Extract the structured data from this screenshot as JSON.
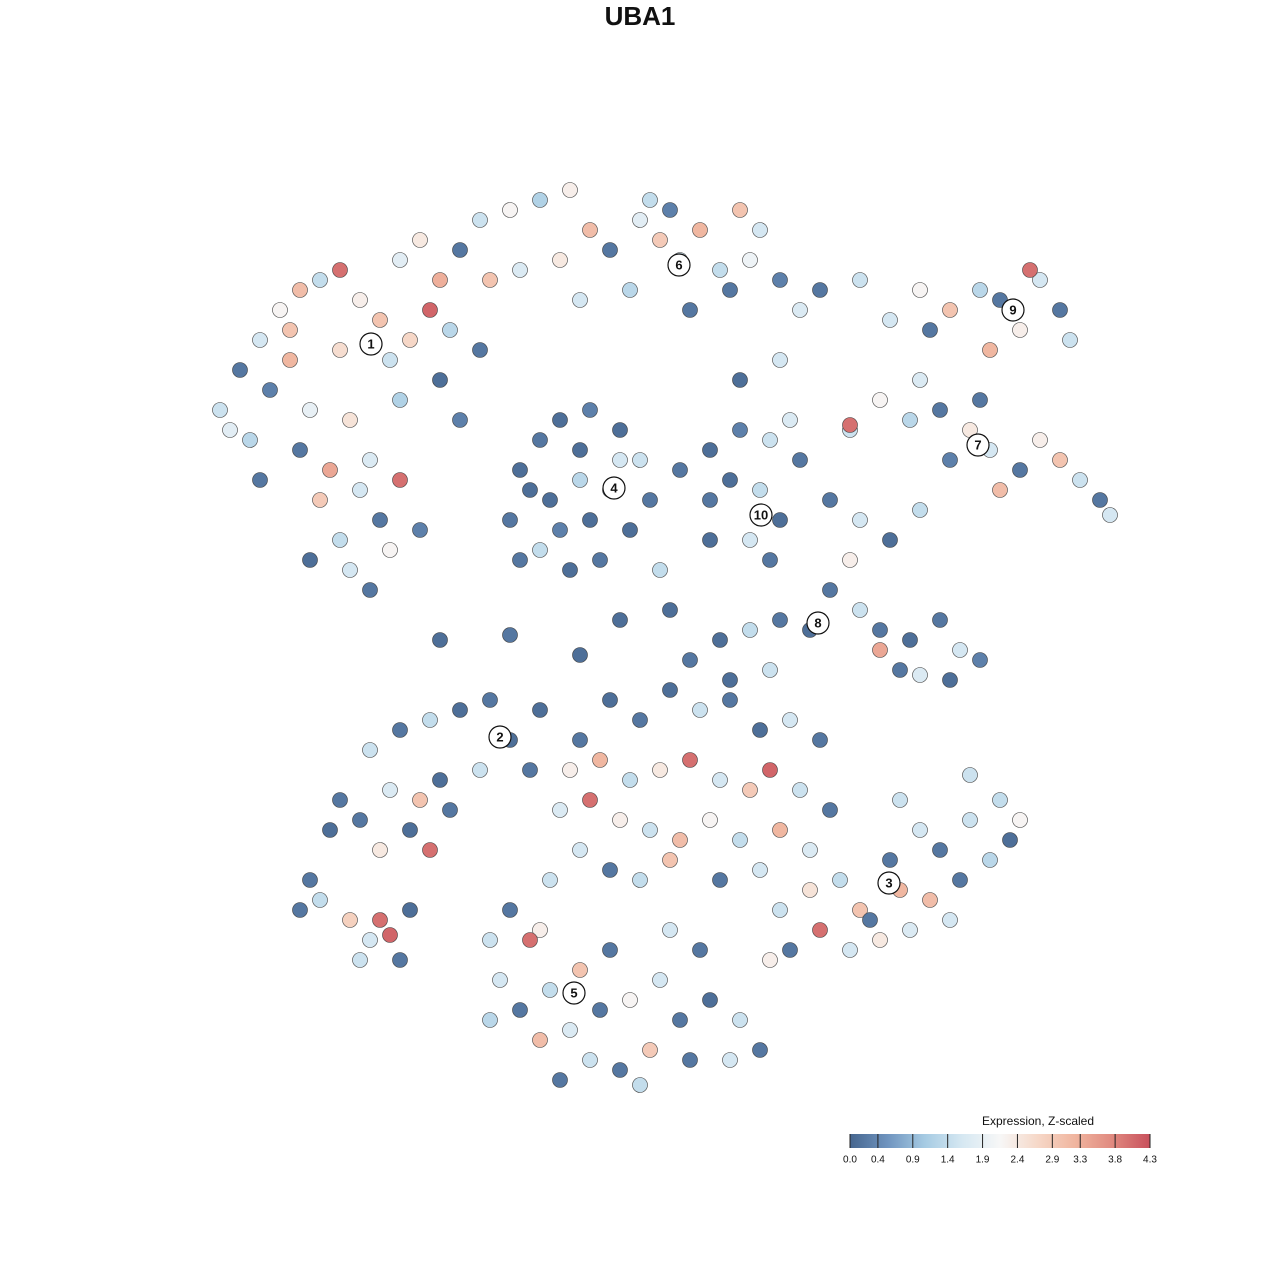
{
  "chart_data": {
    "type": "scatter",
    "title": "UBA1",
    "colorbar_title": "Expression, Z-scaled",
    "clim": [
      0,
      4.3
    ],
    "colorscale": [
      "#46668f",
      "#6f94bf",
      "#a6cbe3",
      "#d6e8f2",
      "#f7f7f7",
      "#f6d8c8",
      "#f0b59f",
      "#e0897f",
      "#c8505c"
    ],
    "cticks": [
      {
        "value": 0,
        "label": "0.0"
      },
      0.4,
      0.9,
      1.4,
      1.9,
      2.4,
      2.9,
      3.3,
      3.8,
      4.3
    ],
    "points": [
      [
        -42,
        23,
        1.5
      ],
      [
        -40,
        27,
        0.2
      ],
      [
        -38,
        30,
        1.6
      ],
      [
        -36,
        33,
        2.2
      ],
      [
        -34,
        35,
        3.1
      ],
      [
        -32,
        36,
        1.4
      ],
      [
        -30,
        37,
        4.0
      ],
      [
        -28,
        34,
        2.3
      ],
      [
        -26,
        32,
        3.0
      ],
      [
        -24,
        38,
        1.8
      ],
      [
        -22,
        40,
        2.4
      ],
      [
        -20,
        36,
        3.3
      ],
      [
        -18,
        39,
        0.2
      ],
      [
        -21,
        33,
        4.1
      ],
      [
        -25,
        28,
        1.5
      ],
      [
        -30,
        29,
        2.6
      ],
      [
        -35,
        28,
        3.2
      ],
      [
        -37,
        25,
        0.3
      ],
      [
        -33,
        23,
        1.9
      ],
      [
        -29,
        22,
        2.5
      ],
      [
        -24,
        24,
        1.2
      ],
      [
        -20,
        26,
        0.1
      ],
      [
        -18,
        22,
        0.3
      ],
      [
        -27,
        18,
        1.7
      ],
      [
        -31,
        17,
        3.4
      ],
      [
        -34,
        19,
        0.2
      ],
      [
        -39,
        20,
        1.3
      ],
      [
        -32,
        14,
        2.9
      ],
      [
        -28,
        15,
        1.6
      ],
      [
        -24,
        16,
        4.0
      ],
      [
        -26,
        12,
        0.2
      ],
      [
        -30,
        10,
        1.4
      ],
      [
        -33,
        8,
        0.1
      ],
      [
        -29,
        7,
        1.6
      ],
      [
        -25,
        9,
        2.2
      ],
      [
        -22,
        11,
        0.3
      ],
      [
        -27,
        5,
        0.2
      ],
      [
        -35,
        31,
        3.0
      ],
      [
        -38,
        16,
        0.2
      ],
      [
        -41,
        21,
        1.8
      ],
      [
        -23,
        30,
        2.7
      ],
      [
        -19,
        31,
        1.3
      ],
      [
        -16,
        29,
        0.2
      ],
      [
        -16,
        42,
        1.5
      ],
      [
        -13,
        43,
        2.2
      ],
      [
        -10,
        44,
        1.2
      ],
      [
        -7,
        45,
        2.3
      ],
      [
        -5,
        41,
        3.1
      ],
      [
        -8,
        38,
        2.4
      ],
      [
        -12,
        37,
        1.7
      ],
      [
        -15,
        36,
        3.0
      ],
      [
        -3,
        39,
        0.2
      ],
      [
        0,
        42,
        1.8
      ],
      [
        2,
        40,
        2.9
      ],
      [
        4,
        38,
        1.5
      ],
      [
        3,
        43,
        0.3
      ],
      [
        6,
        41,
        3.2
      ],
      [
        8,
        37,
        1.4
      ],
      [
        9,
        35,
        0.2
      ],
      [
        11,
        38,
        2.0
      ],
      [
        12,
        41,
        1.6
      ],
      [
        14,
        36,
        0.3
      ],
      [
        16,
        33,
        1.7
      ],
      [
        18,
        35,
        0.2
      ],
      [
        -1,
        35,
        1.3
      ],
      [
        5,
        33,
        0.2
      ],
      [
        -6,
        34,
        1.6
      ],
      [
        1,
        44,
        1.4
      ],
      [
        10,
        43,
        3.0
      ],
      [
        -12,
        17,
        0.1
      ],
      [
        -10,
        20,
        0.2
      ],
      [
        -8,
        22,
        0.1
      ],
      [
        -5,
        23,
        0.3
      ],
      [
        -2,
        21,
        0.1
      ],
      [
        0,
        18,
        1.5
      ],
      [
        1,
        14,
        0.2
      ],
      [
        -1,
        11,
        0.1
      ],
      [
        -4,
        8,
        0.2
      ],
      [
        -7,
        7,
        0.1
      ],
      [
        -10,
        9,
        1.4
      ],
      [
        -13,
        12,
        0.2
      ],
      [
        -9,
        14,
        0.1
      ],
      [
        -6,
        16,
        1.3
      ],
      [
        -3,
        15,
        0.2
      ],
      [
        -5,
        12,
        0.1
      ],
      [
        -8,
        11,
        0.3
      ],
      [
        -11,
        15,
        0.1
      ],
      [
        -2,
        18,
        1.6
      ],
      [
        -6,
        19,
        0.1
      ],
      [
        -12,
        8,
        0.2
      ],
      [
        4,
        17,
        0.2
      ],
      [
        7,
        19,
        0.1
      ],
      [
        10,
        21,
        0.3
      ],
      [
        13,
        20,
        1.5
      ],
      [
        16,
        18,
        0.2
      ],
      [
        12,
        15,
        1.4
      ],
      [
        14,
        12,
        0.1
      ],
      [
        11,
        10,
        1.6
      ],
      [
        13,
        8,
        0.2
      ],
      [
        9,
        16,
        0.1
      ],
      [
        15,
        22,
        1.7
      ],
      [
        7,
        14,
        0.2
      ],
      [
        25,
        32,
        1.6
      ],
      [
        28,
        35,
        2.2
      ],
      [
        31,
        33,
        3.0
      ],
      [
        34,
        35,
        1.3
      ],
      [
        36,
        34,
        0.2
      ],
      [
        38,
        31,
        2.3
      ],
      [
        40,
        36,
        1.6
      ],
      [
        42,
        33,
        0.2
      ],
      [
        43,
        30,
        1.5
      ],
      [
        29,
        31,
        0.2
      ],
      [
        35,
        29,
        3.2
      ],
      [
        39,
        37,
        4.0
      ],
      [
        21,
        21,
        1.5
      ],
      [
        24,
        24,
        2.2
      ],
      [
        27,
        22,
        1.3
      ],
      [
        30,
        23,
        0.2
      ],
      [
        33,
        21,
        2.4
      ],
      [
        35,
        19,
        1.6
      ],
      [
        38,
        17,
        0.2
      ],
      [
        40,
        20,
        2.3
      ],
      [
        42,
        18,
        3.0
      ],
      [
        44,
        16,
        1.5
      ],
      [
        46,
        14,
        0.2
      ],
      [
        47,
        12.5,
        1.6
      ],
      [
        36,
        15,
        3.1
      ],
      [
        31,
        18,
        0.3
      ],
      [
        21,
        21.5,
        4.0
      ],
      [
        28,
        26,
        1.7
      ],
      [
        34,
        24,
        0.2
      ],
      [
        19,
        14,
        0.2
      ],
      [
        22,
        12,
        1.6
      ],
      [
        25,
        10,
        0.1
      ],
      [
        28,
        13,
        1.4
      ],
      [
        21,
        8,
        2.3
      ],
      [
        19,
        5,
        0.2
      ],
      [
        22,
        3,
        1.5
      ],
      [
        24,
        1,
        0.2
      ],
      [
        27,
        0,
        0.1
      ],
      [
        30,
        2,
        0.2
      ],
      [
        32,
        -1,
        1.6
      ],
      [
        34,
        -2,
        0.3
      ],
      [
        31,
        -4,
        0.1
      ],
      [
        26,
        -3,
        0.2
      ],
      [
        24,
        -1,
        3.4
      ],
      [
        17,
        1,
        0.1
      ],
      [
        14,
        2,
        0.2
      ],
      [
        11,
        1,
        1.4
      ],
      [
        8,
        0,
        0.1
      ],
      [
        5,
        -2,
        0.2
      ],
      [
        9,
        -4,
        0.1
      ],
      [
        13,
        -3,
        1.5
      ],
      [
        28,
        -3.5,
        1.7
      ],
      [
        -30,
        -16,
        0.2
      ],
      [
        -27,
        -11,
        1.5
      ],
      [
        -24,
        -9,
        0.2
      ],
      [
        -21,
        -8,
        1.4
      ],
      [
        -18,
        -7,
        0.1
      ],
      [
        -15,
        -6,
        0.2
      ],
      [
        -13,
        -10,
        0.1
      ],
      [
        -11,
        -13,
        0.2
      ],
      [
        -14,
        -9.7,
        1.6
      ],
      [
        -20,
        -14,
        0.1
      ],
      [
        -25,
        -15,
        1.7
      ],
      [
        -28,
        -18,
        0.2
      ],
      [
        -23,
        -19,
        0.1
      ],
      [
        -21,
        -21,
        4.0
      ],
      [
        -26,
        -21,
        2.4
      ],
      [
        -19,
        -17,
        0.2
      ],
      [
        -16,
        -13,
        1.5
      ],
      [
        -31,
        -19,
        0.1
      ],
      [
        -22,
        -16,
        3.0
      ],
      [
        -6,
        -10,
        0.2
      ],
      [
        -3,
        -6,
        0.1
      ],
      [
        0,
        -8,
        0.2
      ],
      [
        3,
        -5,
        0.1
      ],
      [
        6,
        -7,
        1.5
      ],
      [
        9,
        -6,
        0.2
      ],
      [
        12,
        -9,
        0.1
      ],
      [
        15,
        -8,
        1.6
      ],
      [
        18,
        -10,
        0.2
      ],
      [
        -7,
        -13,
        2.3
      ],
      [
        -4,
        -12,
        3.2
      ],
      [
        -1,
        -14,
        1.4
      ],
      [
        2,
        -13,
        2.4
      ],
      [
        5,
        -12,
        4.0
      ],
      [
        8,
        -14,
        1.6
      ],
      [
        11,
        -15,
        2.9
      ],
      [
        13,
        -13,
        4.1
      ],
      [
        16,
        -15,
        1.5
      ],
      [
        19,
        -17,
        0.2
      ],
      [
        -8,
        -17,
        1.7
      ],
      [
        -5,
        -16,
        4.0
      ],
      [
        -2,
        -18,
        2.3
      ],
      [
        1,
        -19,
        1.5
      ],
      [
        4,
        -20,
        3.1
      ],
      [
        7,
        -18,
        2.2
      ],
      [
        10,
        -20,
        1.4
      ],
      [
        14,
        -19,
        3.2
      ],
      [
        17,
        -21,
        1.7
      ],
      [
        -6,
        -21,
        1.6
      ],
      [
        -3,
        -23,
        0.2
      ],
      [
        0,
        -24,
        1.4
      ],
      [
        3,
        -22,
        3.0
      ],
      [
        8,
        -24,
        0.2
      ],
      [
        12,
        -23,
        1.6
      ],
      [
        -9,
        -24,
        1.5
      ],
      [
        14,
        -27,
        1.5
      ],
      [
        17,
        -25,
        2.5
      ],
      [
        20,
        -24,
        1.4
      ],
      [
        22,
        -27,
        3.0
      ],
      [
        25,
        -22,
        0.2
      ],
      [
        28,
        -19,
        1.6
      ],
      [
        30,
        -21,
        0.2
      ],
      [
        33,
        -18,
        1.5
      ],
      [
        36,
        -16,
        1.4
      ],
      [
        38,
        -18,
        2.2
      ],
      [
        35,
        -22,
        1.3
      ],
      [
        32,
        -24,
        0.2
      ],
      [
        29,
        -26,
        3.1
      ],
      [
        27,
        -29,
        1.7
      ],
      [
        24,
        -30,
        2.4
      ],
      [
        21,
        -31,
        1.6
      ],
      [
        18,
        -29,
        4.0
      ],
      [
        15,
        -31,
        0.2
      ],
      [
        13,
        -32,
        2.3
      ],
      [
        31,
        -28,
        1.6
      ],
      [
        26,
        -25,
        3.2
      ],
      [
        23,
        -28,
        0.2
      ],
      [
        37,
        -20,
        0.1
      ],
      [
        26,
        -16,
        1.5
      ],
      [
        33,
        -13.5,
        1.5
      ],
      [
        -15,
        -30,
        1.5
      ],
      [
        -13,
        -27,
        0.2
      ],
      [
        -10,
        -29,
        2.3
      ],
      [
        -11,
        -30,
        4.0
      ],
      [
        -14,
        -34,
        1.6
      ],
      [
        -12,
        -37,
        0.2
      ],
      [
        -9,
        -35,
        1.4
      ],
      [
        -6,
        -33,
        3.0
      ],
      [
        -7,
        -39,
        1.7
      ],
      [
        -4,
        -37,
        0.2
      ],
      [
        -1,
        -36,
        2.2
      ],
      [
        2,
        -34,
        1.6
      ],
      [
        4,
        -38,
        0.2
      ],
      [
        7,
        -36,
        0.1
      ],
      [
        10,
        -38,
        1.5
      ],
      [
        12,
        -41,
        0.2
      ],
      [
        9,
        -42,
        1.6
      ],
      [
        5,
        -42,
        0.2
      ],
      [
        1,
        -41,
        2.9
      ],
      [
        -2,
        -43,
        0.2
      ],
      [
        -5,
        -42,
        1.5
      ],
      [
        -10,
        -40,
        3.1
      ],
      [
        -8,
        -44,
        0.2
      ],
      [
        0,
        -44.5,
        1.4
      ],
      [
        -3,
        -31,
        0.2
      ],
      [
        3,
        -29,
        1.6
      ],
      [
        6,
        -31,
        0.2
      ],
      [
        -15,
        -38,
        1.3
      ],
      [
        -34,
        -27,
        0.2
      ],
      [
        -32,
        -26,
        1.4
      ],
      [
        -29,
        -28,
        2.8
      ],
      [
        -26,
        -28,
        4.0
      ],
      [
        -27,
        -30,
        1.6
      ],
      [
        -28,
        -32,
        1.5
      ],
      [
        -25,
        -29.5,
        4.1
      ],
      [
        -24,
        -32,
        0.2
      ],
      [
        -33,
        -24,
        0.2
      ],
      [
        -23,
        -27,
        0.1
      ],
      [
        -20,
        0,
        0.1
      ],
      [
        -13,
        0.5,
        0.2
      ],
      [
        -6,
        -1.5,
        0.1
      ],
      [
        -2,
        2,
        0.1
      ],
      [
        7,
        10,
        0.1
      ],
      [
        2,
        7,
        1.4
      ],
      [
        3,
        3,
        0.1
      ],
      [
        14,
        28,
        1.6
      ],
      [
        10,
        26,
        0.1
      ],
      [
        22,
        36,
        1.5
      ],
      [
        -10,
        -7,
        0.1
      ]
    ],
    "annotations": [
      {
        "label": "1",
        "x": -26.9,
        "y": 29.6
      },
      {
        "label": "6",
        "x": 3.9,
        "y": 37.5
      },
      {
        "label": "4",
        "x": -2.6,
        "y": 15.2
      },
      {
        "label": "10",
        "x": 12.1,
        "y": 12.5
      },
      {
        "label": "9",
        "x": 37.3,
        "y": 33
      },
      {
        "label": "7",
        "x": 33.8,
        "y": 19.5
      },
      {
        "label": "8",
        "x": 17.8,
        "y": 1.7
      },
      {
        "label": "2",
        "x": -14,
        "y": -9.7
      },
      {
        "label": "3",
        "x": 24.9,
        "y": -24.3
      },
      {
        "label": "5",
        "x": -6.6,
        "y": -35.3
      }
    ]
  }
}
